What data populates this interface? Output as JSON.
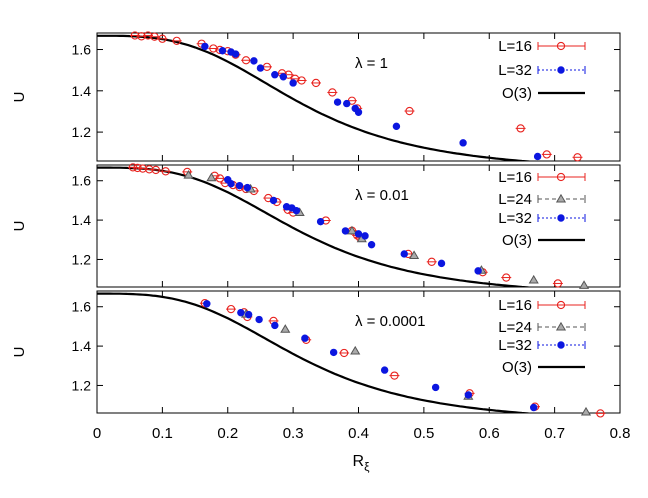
{
  "figure": {
    "xlabel_main": "R",
    "xlabel_sub": "ξ",
    "colors": {
      "L16": "#e8231f",
      "L24": "#555555",
      "L32": "#0b16e0",
      "O3": "#000000",
      "axis": "#000000"
    }
  },
  "chart_data": [
    {
      "type": "scatter",
      "annotation": "λ = 1",
      "ylabel": "U",
      "xlim": [
        0,
        0.8
      ],
      "ylim": [
        1.06,
        1.68
      ],
      "yticks": [
        "1.2",
        "1.4",
        "1.6"
      ],
      "ytick_values": [
        1.2,
        1.4,
        1.6
      ],
      "legend": [
        "L=16",
        "L=32",
        "O(3)"
      ],
      "series": [
        {
          "name": "L=16",
          "marker": "open-circle",
          "x": [
            0.058,
            0.068,
            0.078,
            0.088,
            0.1,
            0.122,
            0.16,
            0.178,
            0.188,
            0.2,
            0.212,
            0.228,
            0.26,
            0.283,
            0.293,
            0.303,
            0.313,
            0.335,
            0.36,
            0.39,
            0.398,
            0.478,
            0.648,
            0.688,
            0.735
          ],
          "y": [
            1.668,
            1.664,
            1.668,
            1.662,
            1.652,
            1.642,
            1.628,
            1.605,
            1.598,
            1.592,
            1.575,
            1.548,
            1.516,
            1.485,
            1.478,
            1.458,
            1.45,
            1.438,
            1.392,
            1.352,
            1.315,
            1.302,
            1.218,
            1.092,
            1.078
          ]
        },
        {
          "name": "L=32",
          "marker": "filled-circle",
          "x": [
            0.165,
            0.192,
            0.205,
            0.212,
            0.24,
            0.25,
            0.272,
            0.285,
            0.3,
            0.368,
            0.382,
            0.395,
            0.4,
            0.458,
            0.56,
            0.674
          ],
          "y": [
            1.615,
            1.594,
            1.588,
            1.578,
            1.545,
            1.51,
            1.478,
            1.468,
            1.438,
            1.345,
            1.338,
            1.315,
            1.296,
            1.228,
            1.148,
            1.082
          ]
        },
        {
          "name": "O(3)",
          "marker": "line"
        }
      ]
    },
    {
      "type": "scatter",
      "annotation": "λ = 0.01",
      "ylabel": "U",
      "xlim": [
        0,
        0.8
      ],
      "ylim": [
        1.06,
        1.68
      ],
      "yticks": [
        "1.2",
        "1.4",
        "1.6"
      ],
      "ytick_values": [
        1.2,
        1.4,
        1.6
      ],
      "legend": [
        "L=16",
        "L=24",
        "L=32",
        "O(3)"
      ],
      "series": [
        {
          "name": "L=16",
          "marker": "open-circle",
          "x": [
            0.055,
            0.062,
            0.07,
            0.08,
            0.09,
            0.105,
            0.138,
            0.18,
            0.188,
            0.196,
            0.208,
            0.218,
            0.228,
            0.24,
            0.262,
            0.275,
            0.292,
            0.3,
            0.35,
            0.39,
            0.398,
            0.402,
            0.476,
            0.512,
            0.59,
            0.626,
            0.705
          ],
          "y": [
            1.668,
            1.665,
            1.662,
            1.658,
            1.655,
            1.648,
            1.645,
            1.625,
            1.612,
            1.588,
            1.578,
            1.568,
            1.558,
            1.548,
            1.512,
            1.492,
            1.452,
            1.438,
            1.398,
            1.346,
            1.322,
            1.312,
            1.228,
            1.188,
            1.135,
            1.108,
            1.078
          ]
        },
        {
          "name": "L=24",
          "marker": "open-triangle",
          "x": [
            0.14,
            0.175,
            0.235,
            0.31,
            0.39,
            0.405,
            0.485,
            0.588,
            0.668,
            0.745
          ],
          "y": [
            1.628,
            1.615,
            1.558,
            1.438,
            1.345,
            1.305,
            1.22,
            1.145,
            1.095,
            1.068
          ]
        },
        {
          "name": "L=32",
          "marker": "filled-circle",
          "x": [
            0.2,
            0.205,
            0.218,
            0.23,
            0.27,
            0.29,
            0.298,
            0.305,
            0.342,
            0.38,
            0.4,
            0.41,
            0.42,
            0.47,
            0.527,
            0.583
          ],
          "y": [
            1.605,
            1.585,
            1.575,
            1.565,
            1.5,
            1.468,
            1.462,
            1.448,
            1.392,
            1.345,
            1.33,
            1.32,
            1.275,
            1.228,
            1.18,
            1.142
          ]
        },
        {
          "name": "O(3)",
          "marker": "line"
        }
      ]
    },
    {
      "type": "scatter",
      "annotation": "λ = 0.0001",
      "ylabel": "U",
      "xlim": [
        0,
        0.8
      ],
      "ylim": [
        1.06,
        1.68
      ],
      "yticks": [
        "1.2",
        "1.4",
        "1.6"
      ],
      "ytick_values": [
        1.2,
        1.4,
        1.6
      ],
      "legend": [
        "L=16",
        "L=24",
        "L=32",
        "O(3)"
      ],
      "series": [
        {
          "name": "L=16",
          "marker": "open-circle",
          "x": [
            0.165,
            0.205,
            0.225,
            0.23,
            0.27,
            0.32,
            0.378,
            0.455,
            0.57,
            0.67,
            0.77
          ],
          "y": [
            1.618,
            1.588,
            1.572,
            1.548,
            1.528,
            1.432,
            1.365,
            1.25,
            1.16,
            1.092,
            1.058
          ]
        },
        {
          "name": "L=24",
          "marker": "open-triangle",
          "x": [
            0.228,
            0.288,
            0.395,
            0.568,
            0.748
          ],
          "y": [
            1.562,
            1.485,
            1.375,
            1.145,
            1.065
          ]
        },
        {
          "name": "L=32",
          "marker": "filled-circle",
          "x": [
            0.168,
            0.22,
            0.232,
            0.248,
            0.272,
            0.318,
            0.362,
            0.44,
            0.518,
            0.568,
            0.668
          ],
          "y": [
            1.615,
            1.57,
            1.56,
            1.535,
            1.505,
            1.44,
            1.368,
            1.278,
            1.19,
            1.152,
            1.088
          ]
        },
        {
          "name": "O(3)",
          "marker": "line"
        }
      ]
    }
  ],
  "x_axis": {
    "ticks": [
      "0",
      "0.1",
      "0.2",
      "0.3",
      "0.4",
      "0.5",
      "0.6",
      "0.7",
      "0.8"
    ],
    "tick_values": [
      0,
      0.1,
      0.2,
      0.3,
      0.4,
      0.5,
      0.6,
      0.7,
      0.8
    ]
  }
}
